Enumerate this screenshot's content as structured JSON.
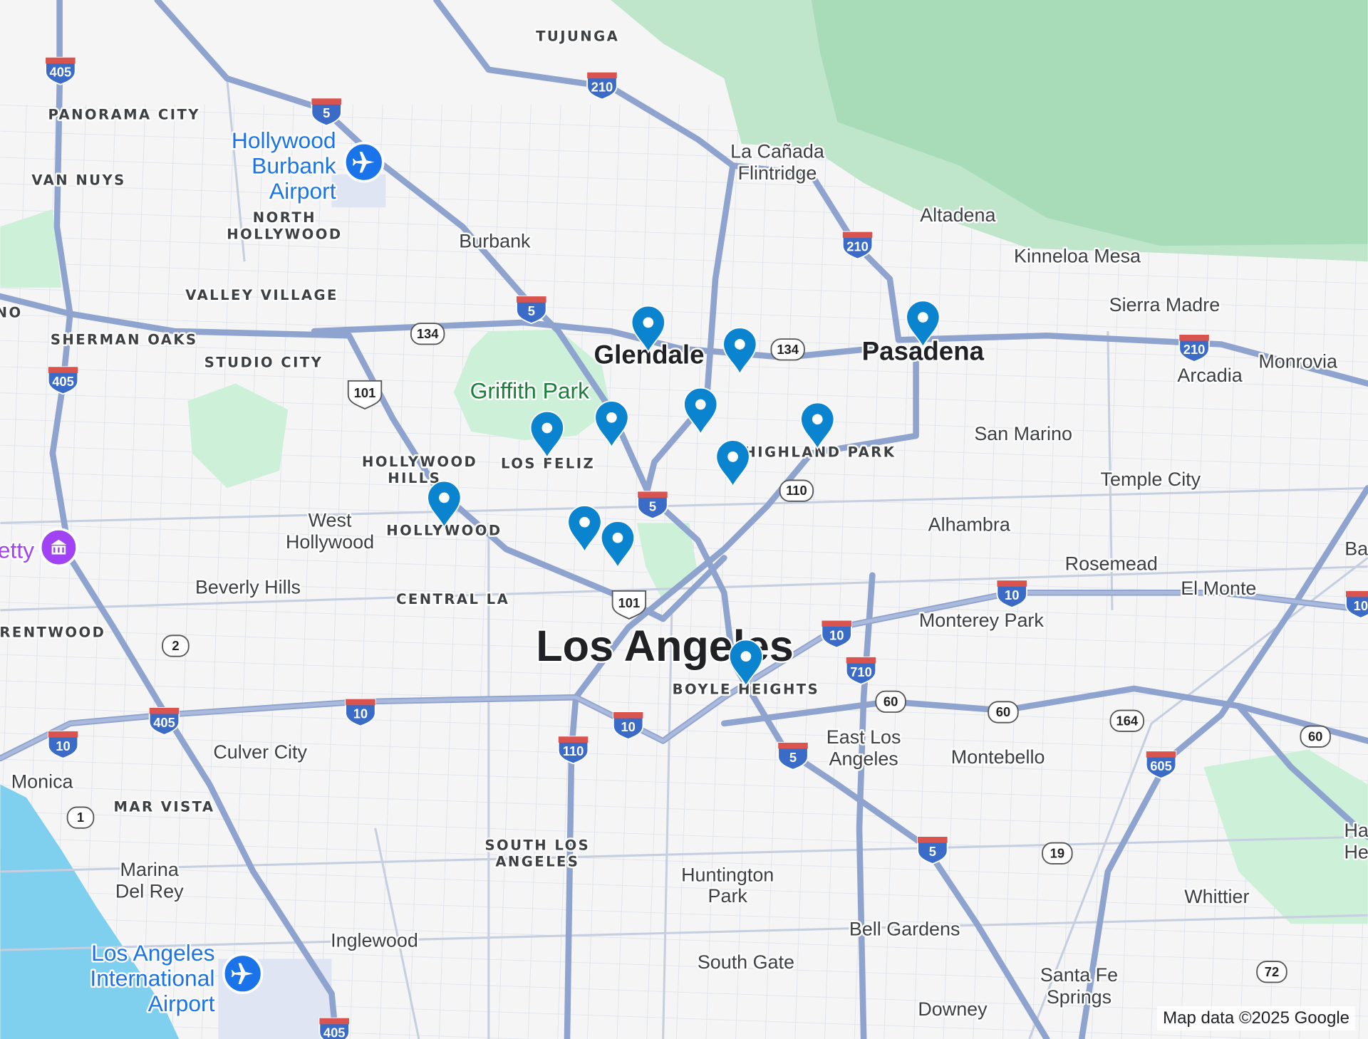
{
  "map": {
    "colors": {
      "land": "#f5f5f5",
      "park": "#ccf0d8",
      "mountain": "#a8dcb8",
      "water": "#7fcfee",
      "freeway": "#8fa3cf",
      "pin": "#0b84d0",
      "interstate": "#3a6bc6",
      "airport": "#1a73e8",
      "museum": "#a142f4"
    },
    "places": {
      "tujunga": "TUJUNGA",
      "panorama_city": "PANORAMA CITY",
      "van_nuys": "VAN NUYS",
      "burbank_airport_1": "Hollywood",
      "burbank_airport_2": "Burbank",
      "burbank_airport_3": "Airport",
      "north_hollywood_1": "NORTH",
      "north_hollywood_2": "HOLLYWOOD",
      "burbank": "Burbank",
      "valley_village": "VALLEY VILLAGE",
      "no": "NO",
      "sherman_oaks": "SHERMAN OAKS",
      "studio_city": "STUDIO CITY",
      "la_canada_1": "La Cañada",
      "la_canada_2": "Flintridge",
      "altadena": "Altadena",
      "kinneloa_mesa": "Kinneloa Mesa",
      "sierra_madre": "Sierra Madre",
      "glendale": "Glendale",
      "pasadena": "Pasadena",
      "monrovia": "Monrovia",
      "arcadia": "Arcadia",
      "griffith_park": "Griffith Park",
      "san_marino": "San Marino",
      "hollywood_hills_1": "HOLLYWOOD",
      "hollywood_hills_2": "HILLS",
      "los_feliz": "LOS FELIZ",
      "highland_park": "HIGHLAND PARK",
      "temple_city": "Temple City",
      "west_hollywood_1": "West",
      "west_hollywood_2": "Hollywood",
      "hollywood": "HOLLYWOOD",
      "alhambra": "Alhambra",
      "getty": "etty",
      "ba": "Ba",
      "beverly_hills": "Beverly Hills",
      "central_la": "CENTRAL LA",
      "rosemead": "Rosemead",
      "el_monte": "El Monte",
      "monterey_park": "Monterey Park",
      "brentwood": "RENTWOOD",
      "los_angeles": "Los Angeles",
      "boyle_heights": "BOYLE HEIGHTS",
      "culver_city": "Culver City",
      "east_la_1": "East Los",
      "east_la_2": "Angeles",
      "montebello": "Montebello",
      "monica": "Monica",
      "mar_vista": "MAR VISTA",
      "south_la_1": "SOUTH LOS",
      "south_la_2": "ANGELES",
      "ha": "Ha",
      "he": "He",
      "marina_1": "Marina",
      "marina_2": "Del Rey",
      "huntington_1": "Huntington",
      "huntington_2": "Park",
      "whittier": "Whittier",
      "bell_gardens": "Bell Gardens",
      "inglewood": "Inglewood",
      "lax_1": "Los Angeles",
      "lax_2": "International",
      "lax_3": "Airport",
      "south_gate": "South Gate",
      "santa_fe_1": "Santa Fe",
      "santa_fe_2": "Springs",
      "downey": "Downey"
    },
    "shields": {
      "interstate": [
        "405",
        "5",
        "210",
        "5",
        "405",
        "210",
        "210",
        "5",
        "10",
        "710",
        "10",
        "10",
        "405",
        "10",
        "10",
        "10",
        "110",
        "5",
        "605",
        "5",
        "405"
      ],
      "us": [
        "101",
        "101"
      ],
      "state": [
        "134",
        "134",
        "110",
        "2",
        "60",
        "60",
        "164",
        "60",
        "1",
        "19",
        "72"
      ]
    },
    "icons": {
      "airport": "airplane-icon",
      "museum": "museum-icon",
      "pin": "map-pin-icon"
    },
    "pin_count": 12,
    "attribution": "Map data ©2025 Google"
  }
}
